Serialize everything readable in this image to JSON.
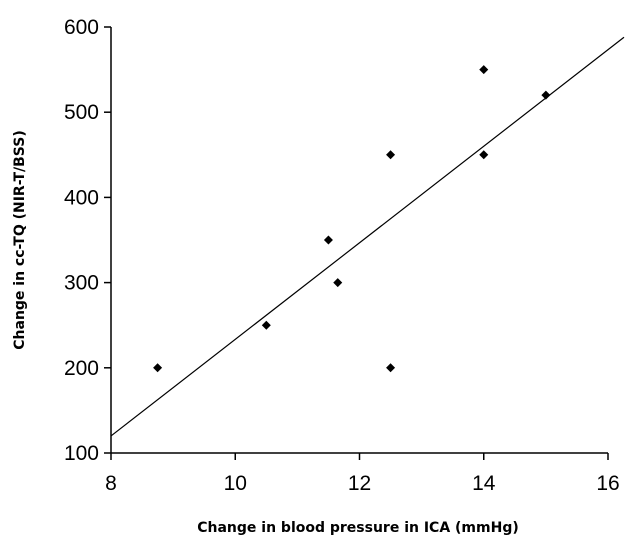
{
  "chart_data": {
    "type": "scatter",
    "title": "",
    "xlabel": "Change in blood pressure in ICA (mmHg)",
    "ylabel": "Change in cc-TQ (NIR-T/BSS)",
    "xlim": [
      8,
      16
    ],
    "ylim": [
      100,
      600
    ],
    "x_ticks": [
      "8",
      "10",
      "12",
      "14",
      "16"
    ],
    "y_ticks": [
      "100",
      "200",
      "300",
      "400",
      "500",
      "600"
    ],
    "grid": false,
    "legend": "none",
    "marker": "diamond",
    "marker_color": "#000000",
    "line_color": "#000000",
    "points": [
      {
        "x": 8.75,
        "y": 200
      },
      {
        "x": 10.5,
        "y": 250
      },
      {
        "x": 11.5,
        "y": 350
      },
      {
        "x": 11.65,
        "y": 300
      },
      {
        "x": 12.5,
        "y": 450
      },
      {
        "x": 12.5,
        "y": 200
      },
      {
        "x": 14.0,
        "y": 550
      },
      {
        "x": 14.0,
        "y": 450
      },
      {
        "x": 15.0,
        "y": 520
      }
    ],
    "trendline": {
      "type": "linear",
      "from": {
        "x": 8,
        "y": 120
      },
      "to": {
        "x": 16.3,
        "y": 588
      }
    }
  }
}
